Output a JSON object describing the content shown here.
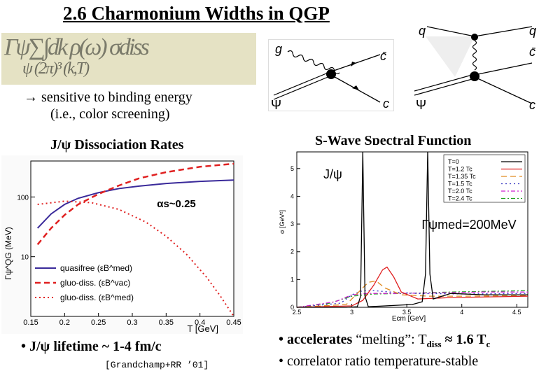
{
  "slide": {
    "title": "2.6 Charmonium Widths in QGP",
    "formula_glyphs_top": "Γψ∑∫dk ρ(ω) σdiss",
    "formula_glyphs_bottom": "ψ  (2π)³  (k,T)",
    "sensitivity_line1": "→ sensitive to binding energy",
    "sensitivity_line2": "(i.e., color screening)",
    "left_heading": "J/ψ Dissociation Rates",
    "right_heading": "S-Wave Spectral Function",
    "lifetime_bullet": "•  J/ψ lifetime ~ 1-4 fm/c",
    "lifetime_bold": "J/ψ lifetime",
    "reference": "[Grandchamp+RR ’01]",
    "bullet_accelerates_bold": "• accelerates",
    "bullet_accelerates_rest": " “melting”: T",
    "bullet_diss_sub": "diss",
    "bullet_approx": " ≈ 1.6 T",
    "bullet_c_sub": "c",
    "bullet_correlator": "• correlator ratio temperature-stable"
  },
  "diagrams": {
    "left": {
      "g": "g",
      "cbar": "c̄",
      "psi": "Ψ",
      "c": "c"
    },
    "right": {
      "q_left": "q",
      "q_right": "q",
      "cbar": "c̄",
      "psi": "Ψ",
      "c": "c"
    }
  },
  "colors": {
    "quasifree": "#3a2a9a",
    "gluo_vac": "#e02020",
    "gluo_med": "#e02020",
    "formula_bg": "#e5e2c4"
  },
  "chart_data": [
    {
      "type": "line",
      "title": "J/ψ Dissociation Rates",
      "xlabel": "T [GeV]",
      "ylabel": "Γψ^QG (MeV)",
      "x_ticks": [
        "0.15",
        "0.2",
        "0.25",
        "0.3",
        "0.35",
        "0.4",
        "0.45"
      ],
      "y_ticks": [
        "10",
        "100"
      ],
      "xlim": [
        0.15,
        0.45
      ],
      "ylim": [
        1,
        400
      ],
      "yscale": "log",
      "annotation": "αs~0.25",
      "legend": [
        "quasifree (εB^med)",
        "gluo-diss. (εB^vac)",
        "gluo-diss. (εB^med)"
      ],
      "series": [
        {
          "name": "quasifree",
          "x": [
            0.16,
            0.18,
            0.2,
            0.22,
            0.25,
            0.28,
            0.31,
            0.35,
            0.4,
            0.45
          ],
          "y": [
            30,
            52,
            75,
            95,
            118,
            138,
            152,
            168,
            182,
            192
          ],
          "style": "solid"
        },
        {
          "name": "gluo-diss. vac",
          "x": [
            0.16,
            0.18,
            0.2,
            0.22,
            0.25,
            0.28,
            0.31,
            0.35,
            0.4,
            0.45
          ],
          "y": [
            16,
            30,
            50,
            75,
            112,
            155,
            205,
            260,
            320,
            360
          ],
          "style": "dashed"
        },
        {
          "name": "gluo-diss. med",
          "x": [
            0.16,
            0.2,
            0.24,
            0.28,
            0.32,
            0.35,
            0.38,
            0.41,
            0.43,
            0.45
          ],
          "y": [
            75,
            85,
            80,
            62,
            38,
            22,
            11,
            4.5,
            2.2,
            1
          ],
          "style": "dotted"
        }
      ]
    },
    {
      "type": "line",
      "title": "S-Wave Spectral Function",
      "subtitle": "J/ψ",
      "xlabel": "Ecm [GeV]",
      "ylabel": "σ [GeV²]",
      "x_ticks": [
        "2.5",
        "3",
        "3.5",
        "4",
        "4.5"
      ],
      "y_ticks": [
        "0",
        "1",
        "2",
        "3",
        "4",
        "5"
      ],
      "xlim": [
        2.5,
        4.6
      ],
      "ylim": [
        0,
        5.6
      ],
      "annotation": "Γψmed=200MeV",
      "legend": [
        "T=0",
        "T=1.2 Tc",
        "T=1.35 Tc",
        "T=1.5 Tc",
        "T=2.0 Tc",
        "T=2.4 Tc"
      ],
      "series": [
        {
          "name": "T=0",
          "color": "#000000",
          "style": "solid",
          "x": [
            2.5,
            2.95,
            3.05,
            3.08,
            3.1,
            3.12,
            3.15,
            3.3,
            3.55,
            3.64,
            3.67,
            3.69,
            3.71,
            3.74,
            3.9,
            4.2,
            4.6
          ],
          "y": [
            0,
            0,
            0.02,
            0.4,
            5.6,
            0.4,
            0.02,
            0.05,
            0.1,
            0.2,
            1.2,
            5.6,
            1.2,
            0.3,
            0.5,
            0.45,
            0.45
          ]
        },
        {
          "name": "T=1.2 Tc",
          "color": "#e02020",
          "style": "solid",
          "x": [
            2.5,
            3.0,
            3.1,
            3.2,
            3.28,
            3.32,
            3.38,
            3.45,
            3.6,
            3.9,
            4.6
          ],
          "y": [
            0,
            0.05,
            0.25,
            0.8,
            1.35,
            1.45,
            1.1,
            0.55,
            0.3,
            0.35,
            0.4
          ]
        },
        {
          "name": "T=1.35 Tc",
          "color": "#e08a20",
          "style": "dashed",
          "x": [
            2.5,
            2.95,
            3.05,
            3.15,
            3.22,
            3.3,
            3.45,
            3.7,
            4.0,
            4.6
          ],
          "y": [
            0,
            0.1,
            0.5,
            0.9,
            0.95,
            0.7,
            0.45,
            0.4,
            0.4,
            0.42
          ]
        },
        {
          "name": "T=1.5 Tc",
          "color": "#3030c0",
          "style": "dotted",
          "x": [
            2.5,
            2.9,
            3.0,
            3.1,
            3.2,
            3.35,
            3.6,
            4.0,
            4.6
          ],
          "y": [
            0,
            0.15,
            0.45,
            0.6,
            0.6,
            0.55,
            0.5,
            0.48,
            0.5
          ]
        },
        {
          "name": "T=2.0 Tc",
          "color": "#d020d0",
          "style": "dashdot",
          "x": [
            2.5,
            2.85,
            3.0,
            3.15,
            3.4,
            3.8,
            4.2,
            4.6
          ],
          "y": [
            0,
            0.2,
            0.45,
            0.5,
            0.5,
            0.52,
            0.55,
            0.55
          ]
        },
        {
          "name": "T=2.4 Tc",
          "color": "#20a020",
          "style": "dashdot",
          "x": [
            2.5,
            2.8,
            3.0,
            3.2,
            3.5,
            3.9,
            4.3,
            4.6
          ],
          "y": [
            0,
            0.15,
            0.4,
            0.48,
            0.5,
            0.55,
            0.58,
            0.6
          ]
        }
      ]
    }
  ]
}
